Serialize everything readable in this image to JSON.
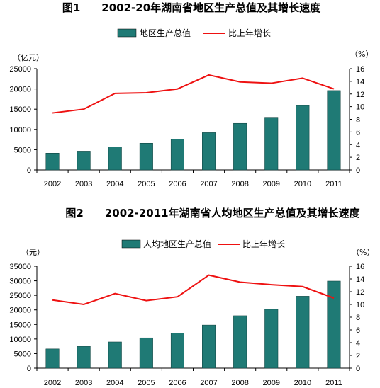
{
  "chart_data": [
    {
      "type": "bar",
      "title": "图1　　2002-20年湖南省地区生产总值及其增长速度",
      "categories": [
        "2002",
        "2003",
        "2004",
        "2005",
        "2006",
        "2007",
        "2008",
        "2009",
        "2010",
        "2011"
      ],
      "left_unit": "（亿元）",
      "right_unit": "（%）",
      "ylim_left": [
        0,
        25000
      ],
      "yticks_left": [
        "0",
        "5000",
        "10000",
        "15000",
        "20000",
        "25000"
      ],
      "ylim_right": [
        0,
        16
      ],
      "yticks_right": [
        "0",
        "2",
        "4",
        "6",
        "8",
        "10",
        "12",
        "14",
        "16"
      ],
      "series": [
        {
          "name": "地区生产总值",
          "kind": "bar",
          "axis": "left",
          "color": "#1f7a75",
          "values": [
            4150,
            4650,
            5640,
            6600,
            7600,
            9200,
            11500,
            13000,
            15900,
            19600
          ]
        },
        {
          "name": "比上年增长",
          "kind": "line",
          "axis": "right",
          "color": "#ee1111",
          "values": [
            9.0,
            9.6,
            12.1,
            12.2,
            12.8,
            15.0,
            13.9,
            13.7,
            14.5,
            12.8
          ]
        }
      ]
    },
    {
      "type": "bar",
      "title": "图2　　2002-2011年湖南省人均地区生产总值及其增长速度",
      "categories": [
        "2002",
        "2003",
        "2004",
        "2005",
        "2006",
        "2007",
        "2008",
        "2009",
        "2010",
        "2011"
      ],
      "left_unit": "（元）",
      "right_unit": "（%）",
      "ylim_left": [
        0,
        35000
      ],
      "yticks_left": [
        "0",
        "5000",
        "10000",
        "15000",
        "20000",
        "25000",
        "30000",
        "35000"
      ],
      "ylim_right": [
        0,
        16
      ],
      "yticks_right": [
        "0",
        "2",
        "4",
        "6",
        "8",
        "10",
        "12",
        "14",
        "16"
      ],
      "series": [
        {
          "name": "人均地区生产总值",
          "kind": "bar",
          "axis": "left",
          "color": "#1f7a75",
          "values": [
            6600,
            7500,
            9000,
            10400,
            12000,
            14800,
            18000,
            20200,
            24700,
            29900
          ]
        },
        {
          "name": "比上年增长",
          "kind": "line",
          "axis": "right",
          "color": "#ee1111",
          "values": [
            10.7,
            10.0,
            11.7,
            10.6,
            11.2,
            14.6,
            13.5,
            13.1,
            12.8,
            11.0
          ]
        }
      ]
    }
  ]
}
